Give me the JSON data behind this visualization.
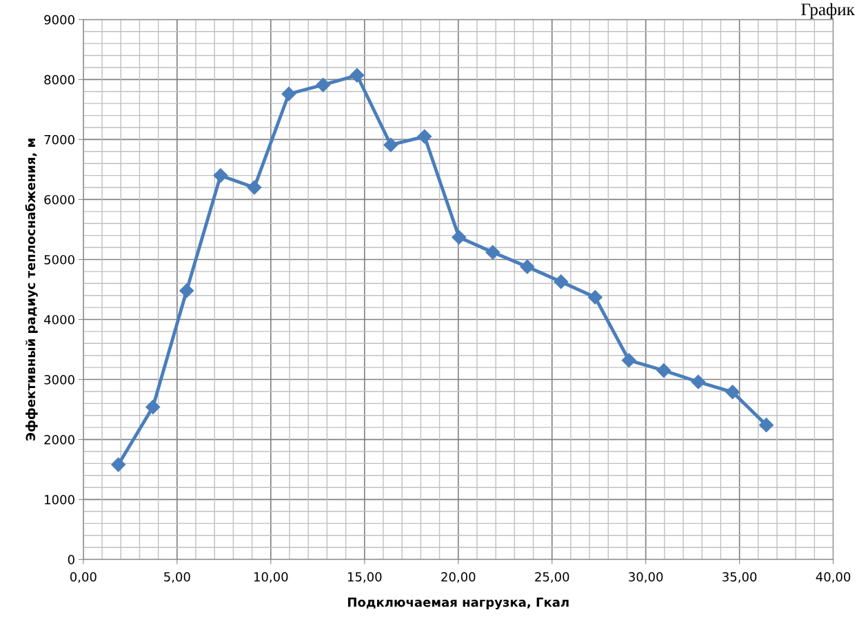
{
  "chart_data": {
    "type": "line",
    "xlabel": "Подключаемая нагрузка, Гкал",
    "ylabel": "Эффективный радиус теплоснабжения, м",
    "annotations": [
      "График"
    ],
    "x": [
      1.87,
      3.71,
      5.51,
      7.32,
      9.12,
      10.96,
      12.79,
      14.6,
      16.4,
      18.2,
      20.04,
      21.84,
      23.68,
      25.48,
      27.3,
      29.1,
      30.96,
      32.8,
      34.63,
      36.43
    ],
    "series": [
      {
        "color": "#4a7ebb",
        "values": [
          1580,
          2540,
          4480,
          6400,
          6200,
          7760,
          7910,
          8070,
          6910,
          7050,
          5370,
          5120,
          4880,
          4630,
          4370,
          3320,
          3150,
          2960,
          2790,
          2240
        ]
      }
    ],
    "xlim": [
      0,
      40
    ],
    "ylim": [
      0,
      9000
    ],
    "xticks": [
      {
        "value": 0,
        "label": "0,00"
      },
      {
        "value": 5,
        "label": "5,00"
      },
      {
        "value": 10,
        "label": "10,00"
      },
      {
        "value": 15,
        "label": "15,00"
      },
      {
        "value": 20,
        "label": "20,00"
      },
      {
        "value": 25,
        "label": "25,00"
      },
      {
        "value": 30,
        "label": "30,00"
      },
      {
        "value": 35,
        "label": "35,00"
      },
      {
        "value": 40,
        "label": "40,00"
      }
    ],
    "yticks": [
      0,
      1000,
      2000,
      3000,
      4000,
      5000,
      6000,
      7000,
      8000,
      9000
    ],
    "grid": true,
    "legend": false,
    "marker": "diamond",
    "line_style": "solid"
  }
}
